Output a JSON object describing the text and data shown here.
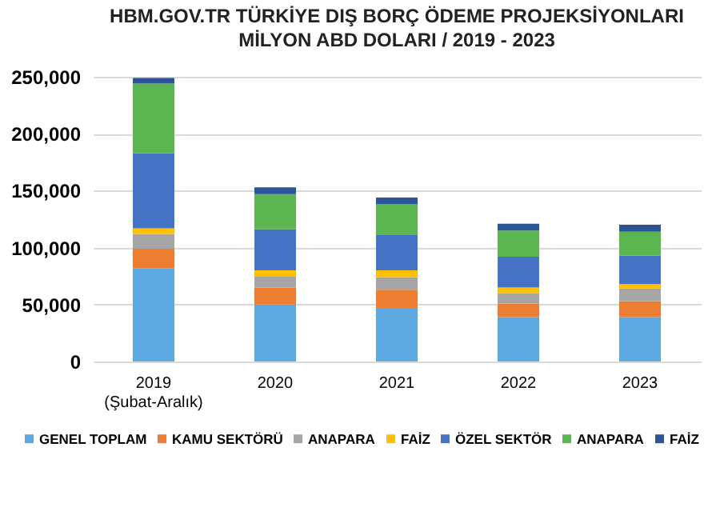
{
  "chart_data": {
    "type": "bar",
    "stacked": true,
    "title": "HBM.GOV.TR TÜRKİYE DIŞ BORÇ ÖDEME PROJEKSİYONLARI",
    "subtitle": "MİLYON ABD DOLARI / 2019 - 2023",
    "categories": [
      "2019\n(Şubat-Aralık)",
      "2020",
      "2021",
      "2022",
      "2023"
    ],
    "series": [
      {
        "name": "GENEL TOPLAM",
        "color": "#5ba9e0",
        "values": [
          82000,
          50000,
          47000,
          39000,
          39000
        ]
      },
      {
        "name": "KAMU SEKTÖRÜ",
        "color": "#ed7d31",
        "values": [
          17000,
          15000,
          16000,
          12000,
          14000
        ]
      },
      {
        "name": "ANAPARA",
        "color": "#a5a5a5",
        "values": [
          13000,
          10000,
          11000,
          9000,
          11000
        ]
      },
      {
        "name": "FAİZ",
        "color": "#ffc000",
        "values": [
          5000,
          5000,
          6000,
          5000,
          4000
        ]
      },
      {
        "name": "ÖZEL SEKTÖR",
        "color": "#4472c4",
        "values": [
          66000,
          36000,
          31000,
          27000,
          25000
        ]
      },
      {
        "name": "ANAPARA",
        "color": "#5bb550",
        "values": [
          61000,
          31000,
          27000,
          23000,
          21000
        ]
      },
      {
        "name": "FAİZ",
        "color": "#2b5597",
        "values": [
          5000,
          6000,
          6000,
          6000,
          6000
        ]
      }
    ],
    "ylim": [
      0,
      250000
    ],
    "yticks": [
      0,
      {
        "value": 50000,
        "label": "50,000"
      },
      {
        "value": 100000,
        "label": "100,000"
      },
      {
        "value": 150000,
        "label": "150,000"
      },
      {
        "value": 200000,
        "label": "200,000"
      },
      {
        "value": 250000,
        "label": "250,000"
      }
    ],
    "grid": "y",
    "legend": "bottom"
  }
}
